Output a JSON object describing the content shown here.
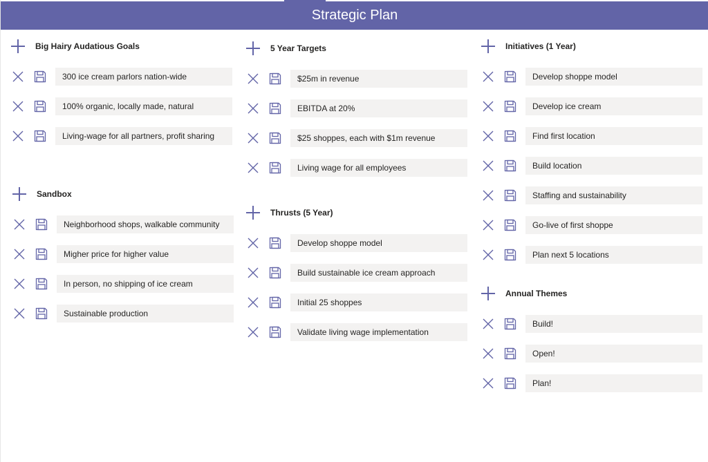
{
  "title": "Strategic Plan",
  "accent": "#6264a7",
  "sections": [
    {
      "title": "Big Hairy Audatious Goals",
      "items": [
        "300 ice cream parlors nation-wide",
        "100% organic, locally made, natural",
        "Living-wage for all partners, profit sharing"
      ]
    },
    {
      "title": "Sandbox",
      "items": [
        "Neighborhood shops, walkable community",
        "Migher price for higher value",
        "In person, no shipping of ice cream",
        "Sustainable production"
      ]
    },
    {
      "title": "5 Year Targets",
      "items": [
        "$25m in revenue",
        "EBITDA at 20%",
        "$25 shoppes, each with $1m revenue",
        "Living wage for all employees"
      ]
    },
    {
      "title": "Thrusts (5 Year)",
      "items": [
        "Develop shoppe model",
        "Build sustainable ice cream approach",
        "Initial 25 shoppes",
        "Validate living wage implementation"
      ]
    },
    {
      "title": "Initiatives (1 Year)",
      "items": [
        "Develop shoppe model",
        "Develop ice cream",
        "Find first location",
        "Build location",
        "Staffing and sustainability",
        "Go-live of first shoppe",
        "Plan next 5 locations"
      ]
    },
    {
      "title": "Annual Themes",
      "items": [
        "Build!",
        "Open!",
        "Plan!"
      ]
    }
  ]
}
